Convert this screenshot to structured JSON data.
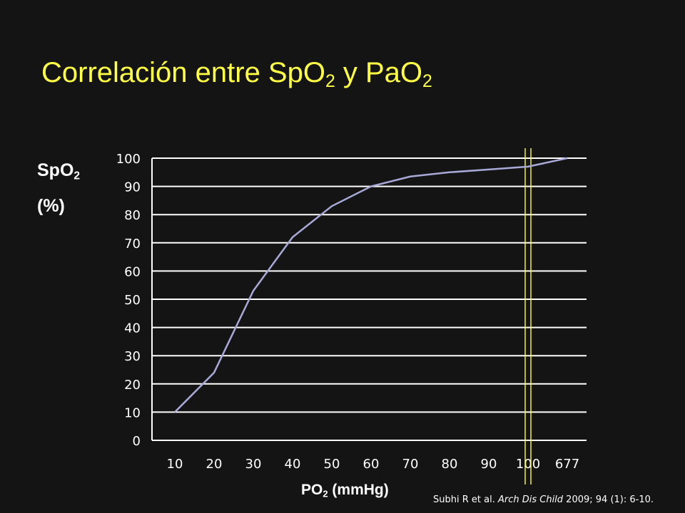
{
  "header": {
    "title_prefix": "Correlación entre SpO",
    "title_sub1": "2",
    "title_mid": " y PaO",
    "title_sub2": "2"
  },
  "axes": {
    "y_label_main": "SpO",
    "y_label_sub": "2",
    "y_label_unit": "(%)",
    "x_label_main": "PO",
    "x_label_sub": "2",
    "x_label_unit": " (mmHg)"
  },
  "citation": {
    "authors": "Subhi R et al. ",
    "journal": "Arch Dis Child",
    "details": " 2009; 94 (1): 6-10."
  },
  "colors": {
    "background": "#141414",
    "title": "#ffff44",
    "series_line": "#a9a9d9",
    "grid": "#ffffff",
    "marker_lines": "#ffff44"
  },
  "chart_data": {
    "type": "line",
    "title": "Correlación entre SpO2 y PaO2",
    "xlabel": "PO2 (mmHg)",
    "ylabel": "SpO2 (%)",
    "categories": [
      "10",
      "20",
      "30",
      "40",
      "50",
      "60",
      "70",
      "80",
      "90",
      "100",
      "677"
    ],
    "y_ticks": [
      "0",
      "10",
      "20",
      "30",
      "40",
      "50",
      "60",
      "70",
      "80",
      "90",
      "100"
    ],
    "ylim": [
      0,
      100
    ],
    "grid": true,
    "series": [
      {
        "values": [
          10,
          24,
          53,
          72,
          83,
          90,
          93.5,
          95,
          96,
          97,
          100
        ]
      }
    ],
    "vertical_marker_x": 100
  }
}
